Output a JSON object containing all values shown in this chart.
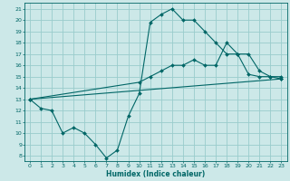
{
  "xlabel": "Humidex (Indice chaleur)",
  "bg_color": "#cce8e8",
  "grid_color": "#99cccc",
  "line_color": "#006666",
  "xlim": [
    -0.5,
    23.5
  ],
  "ylim": [
    7.5,
    21.5
  ],
  "xticks": [
    0,
    1,
    2,
    3,
    4,
    5,
    6,
    7,
    8,
    9,
    10,
    11,
    12,
    13,
    14,
    15,
    16,
    17,
    18,
    19,
    20,
    21,
    22,
    23
  ],
  "yticks": [
    8,
    9,
    10,
    11,
    12,
    13,
    14,
    15,
    16,
    17,
    18,
    19,
    20,
    21
  ],
  "line1_x": [
    0,
    1,
    2,
    3,
    4,
    5,
    6,
    7,
    8,
    9,
    10,
    11,
    12,
    13,
    14,
    15,
    16,
    17,
    18,
    19,
    20,
    21,
    22,
    23
  ],
  "line1_y": [
    13,
    12.2,
    12,
    10,
    10.5,
    10,
    9,
    7.8,
    8.5,
    11.5,
    13.5,
    19.8,
    20.5,
    21,
    20,
    20,
    19,
    18,
    17,
    17,
    15.2,
    15,
    15,
    14.8
  ],
  "line2_x": [
    0,
    10,
    11,
    12,
    13,
    14,
    15,
    16,
    17,
    18,
    19,
    20,
    21,
    22,
    23
  ],
  "line2_y": [
    13,
    14.5,
    15,
    15.5,
    16,
    16,
    16.5,
    16,
    16,
    18,
    17,
    17,
    15.5,
    15,
    15
  ],
  "line3_x": [
    0,
    23
  ],
  "line3_y": [
    13,
    14.8
  ]
}
